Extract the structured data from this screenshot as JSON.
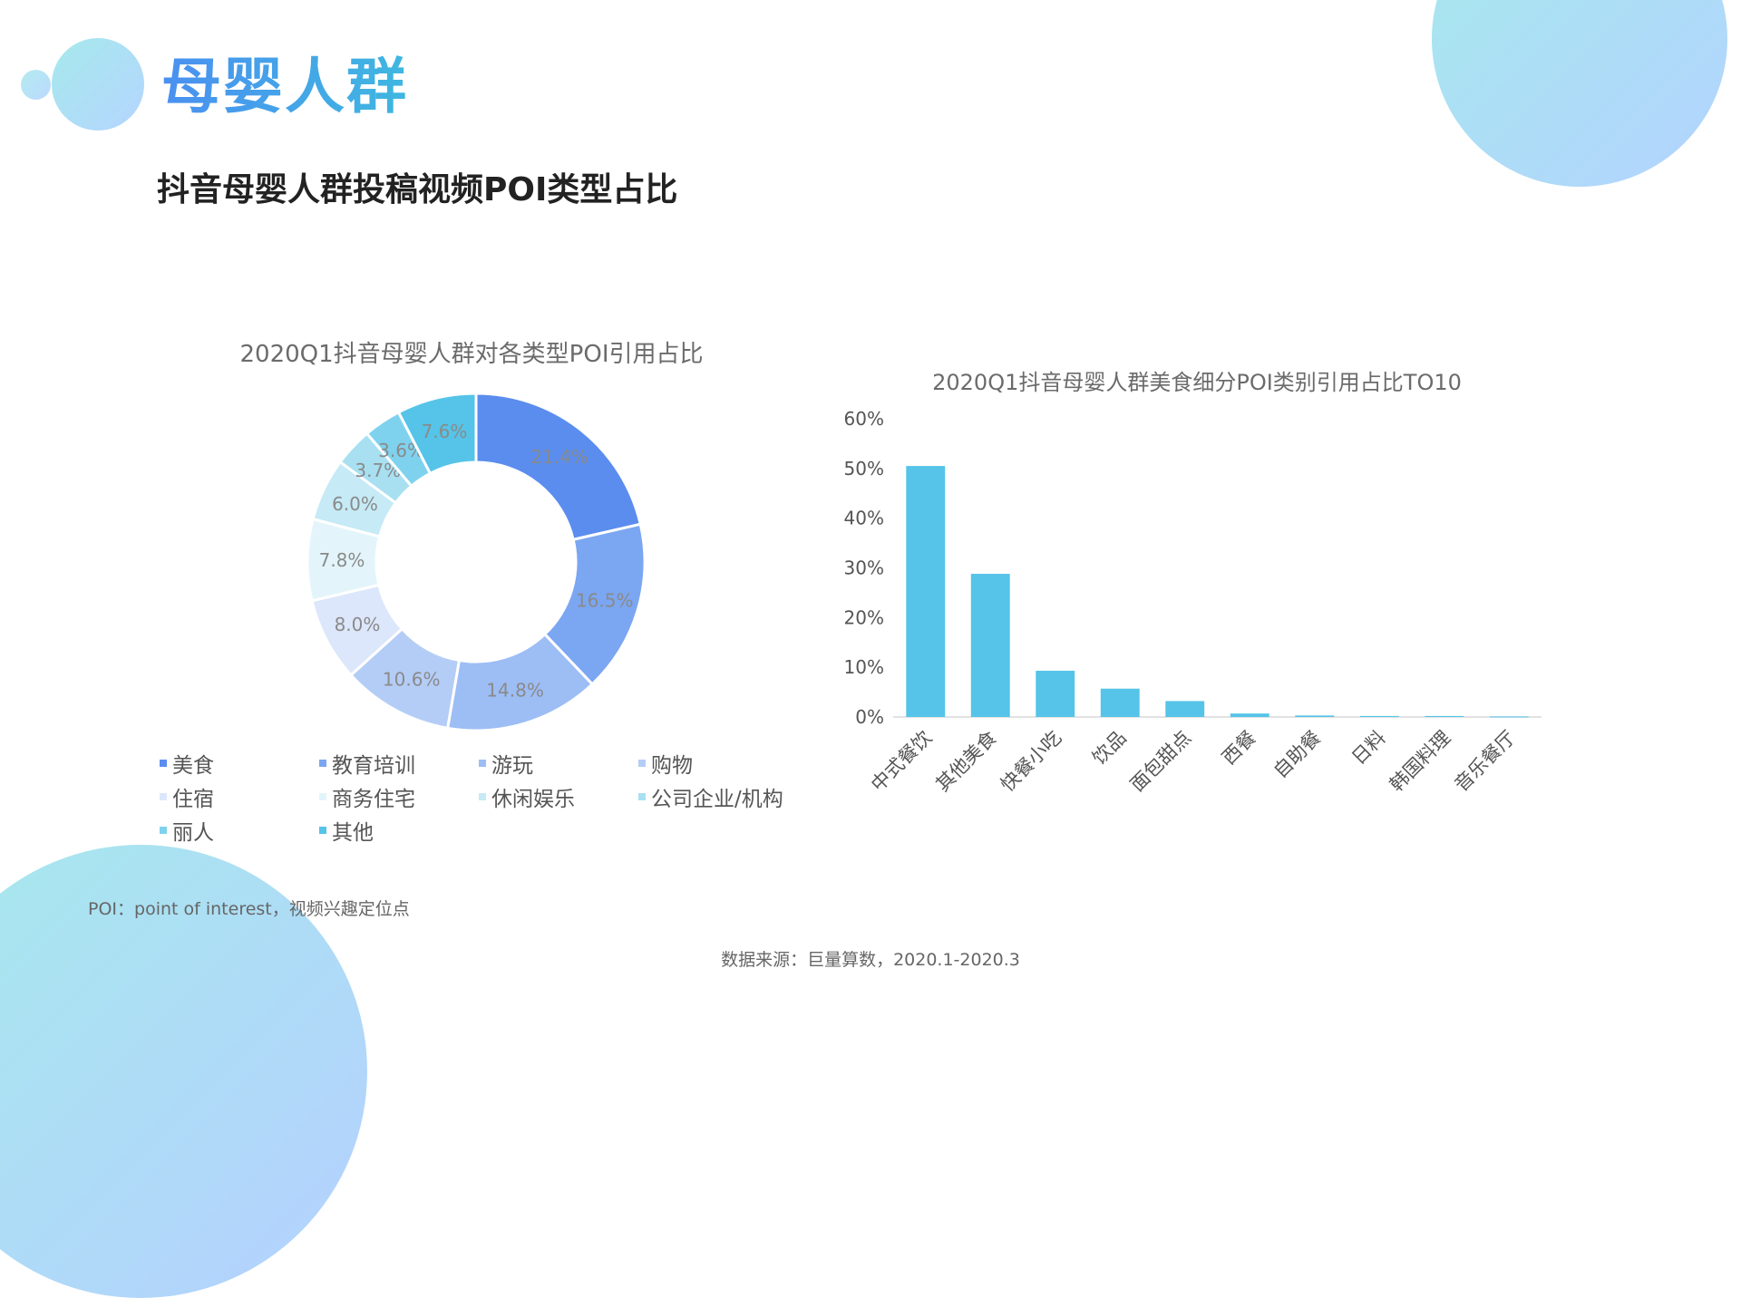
{
  "page": {
    "title": "母婴人群",
    "section_title": "抖音母婴人群投稿视频POI类型占比",
    "footnote": "POI：point of interest，视频兴趣定位点",
    "source": "数据来源：巨量算数，2020.1-2020.3"
  },
  "chart_data": [
    {
      "type": "pie",
      "title": "2020Q1抖音母婴人群对各类型POI引用占比",
      "legend_position": "bottom",
      "slices": [
        {
          "label": "美食",
          "value": 21.4,
          "display": "21.4%",
          "color": "#5b8def"
        },
        {
          "label": "教育培训",
          "value": 16.5,
          "display": "16.5%",
          "color": "#7ba6f2"
        },
        {
          "label": "游玩",
          "value": 14.8,
          "display": "14.8%",
          "color": "#9dbdf5"
        },
        {
          "label": "购物",
          "value": 10.6,
          "display": "10.6%",
          "color": "#b4cdf7"
        },
        {
          "label": "住宿",
          "value": 8.0,
          "display": "8.0%",
          "color": "#dde7fb"
        },
        {
          "label": "商务住宅",
          "value": 7.8,
          "display": "7.8%",
          "color": "#e3f5fb"
        },
        {
          "label": "休闲娱乐",
          "value": 6.0,
          "display": "6.0%",
          "color": "#c6eaf6"
        },
        {
          "label": "公司企业/机构",
          "value": 3.7,
          "display": "3.7%",
          "color": "#a8e0f2"
        },
        {
          "label": "丽人",
          "value": 3.6,
          "display": "3.6%",
          "color": "#7fd2ee"
        },
        {
          "label": "其他",
          "value": 7.6,
          "display": "7.6%",
          "color": "#55c4e8"
        }
      ]
    },
    {
      "type": "bar",
      "title": "2020Q1抖音母婴人群美食细分POI类别引用占比TO10",
      "categories": [
        "中式餐饮",
        "其他美食",
        "快餐小吃",
        "饮品",
        "面包甜点",
        "西餐",
        "自助餐",
        "日料",
        "韩国料理",
        "音乐餐厅"
      ],
      "values": [
        50.5,
        28.8,
        9.3,
        5.7,
        3.2,
        0.7,
        0.3,
        0.2,
        0.2,
        0.1
      ],
      "ylim": [
        0,
        60
      ],
      "yticks": [
        "0%",
        "10%",
        "20%",
        "30%",
        "40%",
        "50%",
        "60%"
      ],
      "ytick_values": [
        0,
        10,
        20,
        30,
        40,
        50,
        60
      ],
      "bar_color": "#55c4e8",
      "grid": false
    }
  ]
}
